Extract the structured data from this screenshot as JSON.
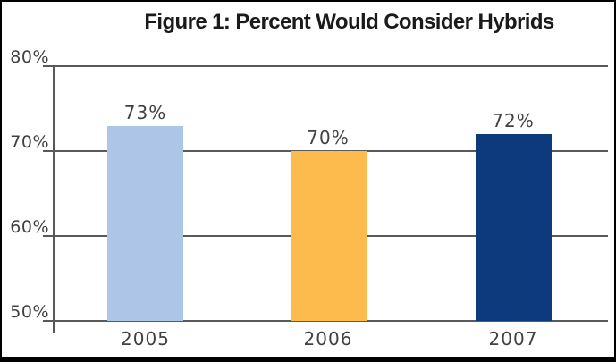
{
  "figure": {
    "title": "Figure 1: Percent Would Consider Hybrids"
  },
  "chart_data": {
    "type": "bar",
    "title": "Figure 1: Percent Would Consider Hybrids",
    "categories": [
      "2005",
      "2006",
      "2007"
    ],
    "values": [
      73,
      70,
      72
    ],
    "value_labels": [
      "73%",
      "70%",
      "72%"
    ],
    "yticks": [
      80,
      70,
      60,
      50
    ],
    "ytick_labels": [
      "80%",
      "70%",
      "60%",
      "50%"
    ],
    "ylim": [
      50,
      80
    ],
    "xlabel": "",
    "ylabel": "",
    "grid": "horizontal",
    "legend_position": "none",
    "bar_colors": [
      "#adc6e8",
      "#fdba4d",
      "#0d3a7c"
    ],
    "gridline_color": "#58595b",
    "axis_color": "#58595b",
    "label_color": "#414042",
    "title_color": "#1a1a1a",
    "frame_color": "#000000",
    "background_color": "#ffffff"
  }
}
